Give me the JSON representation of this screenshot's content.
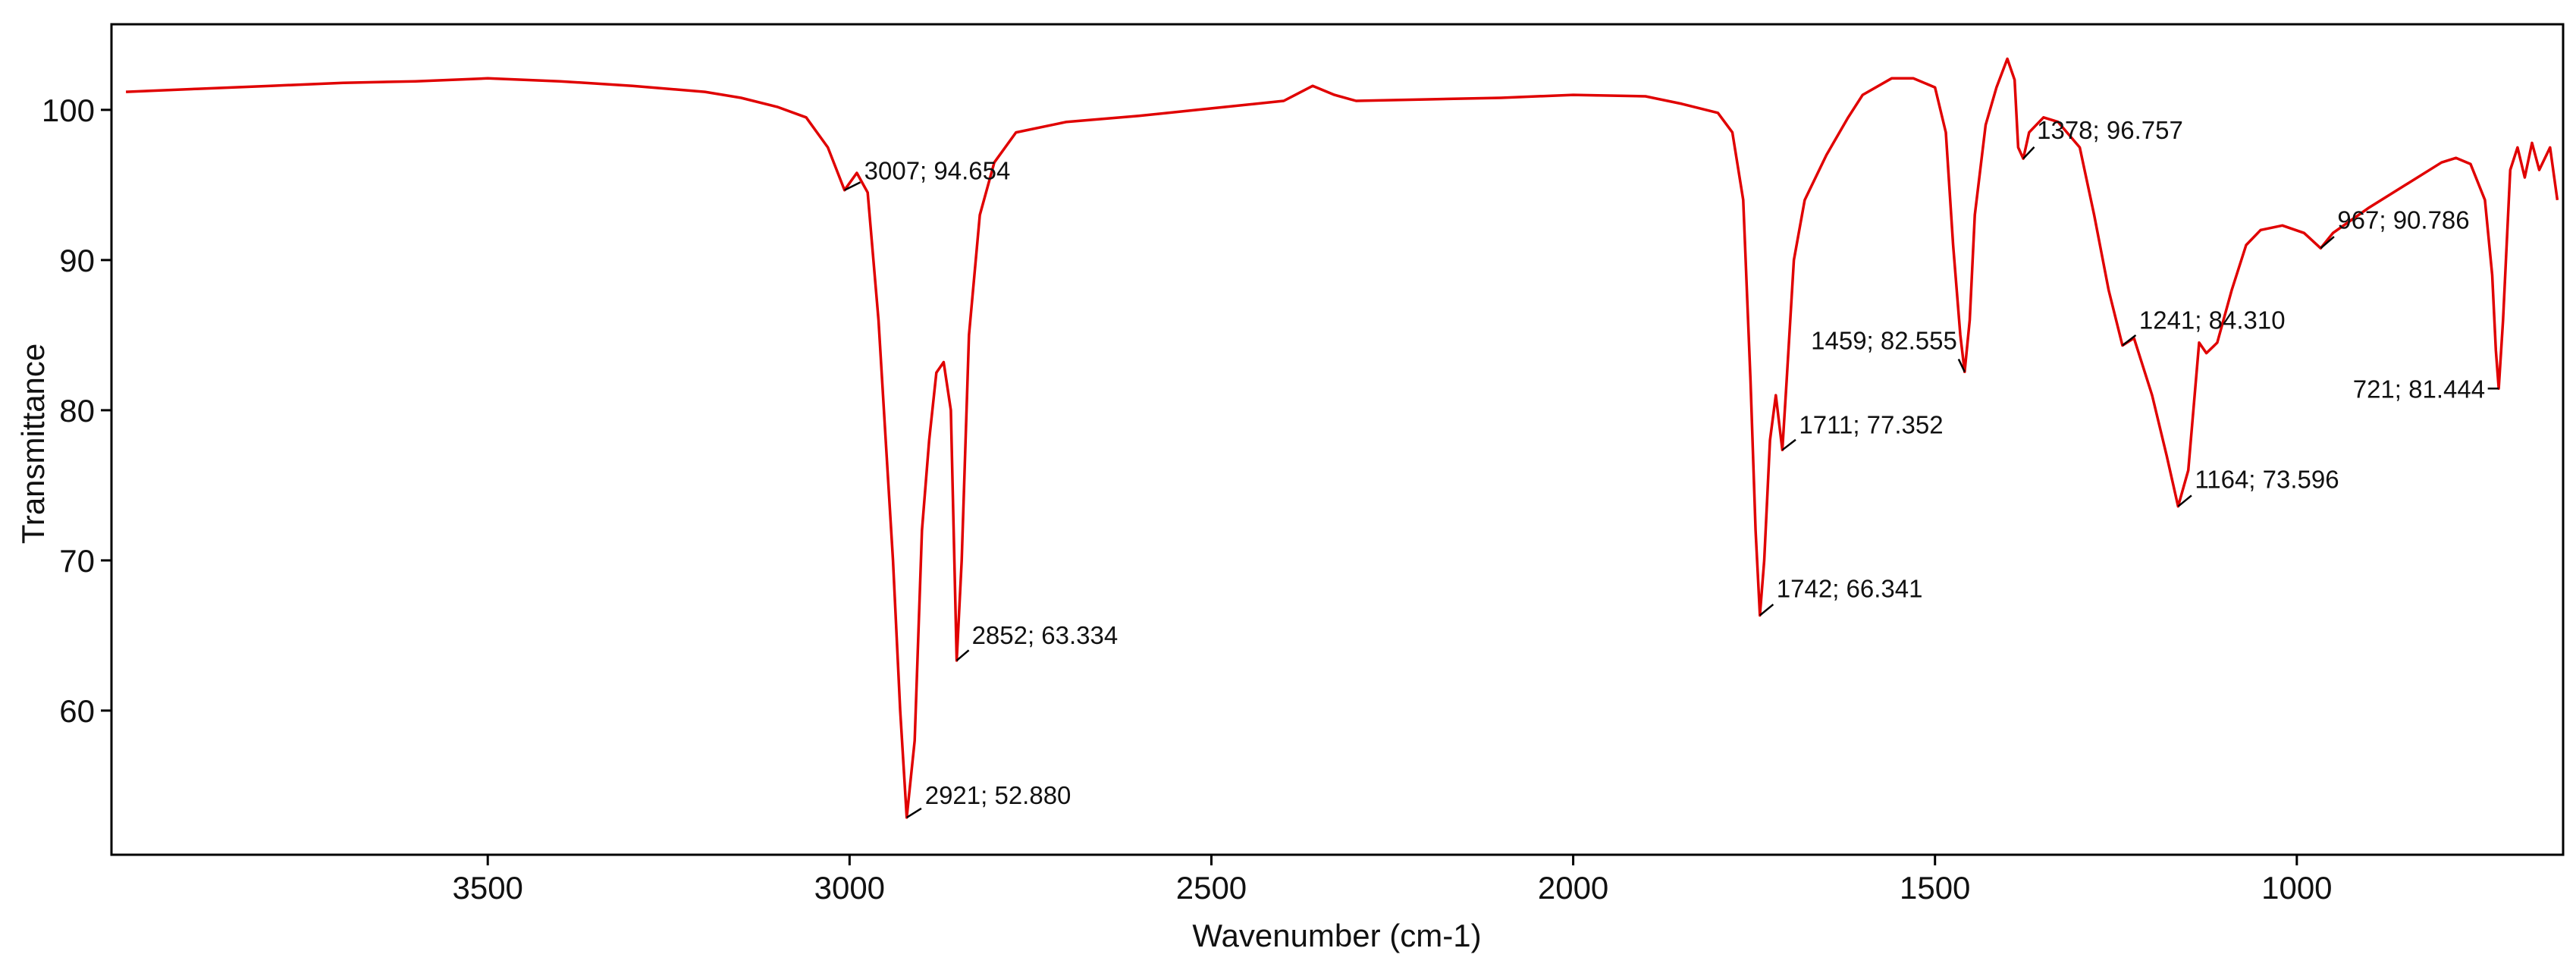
{
  "chart_data": {
    "type": "line",
    "xlabel": "Wavenumber (cm-1)",
    "ylabel": "Transmittance",
    "color": "#e00000",
    "xlim": [
      4020,
      632
    ],
    "ylim": [
      50.4,
      105.7
    ],
    "xticks": [
      3500,
      3000,
      2500,
      2000,
      1500,
      1000
    ],
    "yticks": [
      60,
      70,
      80,
      90,
      100
    ],
    "x": [
      4000,
      3900,
      3800,
      3700,
      3600,
      3500,
      3400,
      3300,
      3200,
      3150,
      3100,
      3060,
      3030,
      3007,
      2990,
      2975,
      2960,
      2950,
      2940,
      2930,
      2921,
      2910,
      2900,
      2890,
      2880,
      2870,
      2860,
      2852,
      2845,
      2835,
      2820,
      2800,
      2770,
      2700,
      2600,
      2500,
      2400,
      2360,
      2330,
      2300,
      2200,
      2100,
      2000,
      1900,
      1850,
      1800,
      1780,
      1765,
      1755,
      1748,
      1742,
      1736,
      1728,
      1720,
      1715,
      1711,
      1705,
      1695,
      1680,
      1650,
      1620,
      1600,
      1560,
      1530,
      1500,
      1485,
      1475,
      1465,
      1459,
      1452,
      1445,
      1430,
      1415,
      1400,
      1390,
      1385,
      1378,
      1370,
      1350,
      1330,
      1300,
      1280,
      1260,
      1241,
      1225,
      1200,
      1180,
      1164,
      1150,
      1135,
      1125,
      1110,
      1090,
      1070,
      1050,
      1020,
      990,
      967,
      950,
      900,
      850,
      800,
      780,
      760,
      740,
      730,
      725,
      721,
      715,
      705,
      695,
      685,
      675,
      665,
      650,
      640
    ],
    "values": [
      101.2,
      101.4,
      101.6,
      101.8,
      101.9,
      102.1,
      101.9,
      101.6,
      101.2,
      100.8,
      100.2,
      99.5,
      97.5,
      94.654,
      95.8,
      94.5,
      86,
      78,
      70,
      60,
      52.88,
      58,
      72,
      78,
      82.5,
      83.2,
      80,
      63.334,
      70,
      85,
      93,
      96.5,
      98.5,
      99.2,
      99.6,
      100.1,
      100.6,
      101.6,
      101.0,
      100.6,
      100.7,
      100.8,
      101.0,
      100.9,
      100.4,
      99.8,
      98.5,
      94,
      82,
      72,
      66.341,
      70,
      78,
      81,
      79,
      77.352,
      82,
      90,
      94,
      97,
      99.5,
      101,
      102.1,
      102.1,
      101.5,
      98.5,
      91,
      85,
      82.555,
      86,
      93,
      99,
      101.5,
      103.4,
      102,
      97.5,
      96.757,
      98.5,
      99.5,
      99.2,
      97.5,
      93,
      88,
      84.31,
      84.8,
      81,
      77,
      73.596,
      76,
      84.5,
      83.8,
      84.5,
      88,
      91,
      92,
      92.3,
      91.8,
      90.786,
      91.8,
      93.5,
      95,
      96.5,
      96.8,
      96.4,
      94,
      89,
      84,
      81.444,
      86,
      96,
      97.5,
      95.5,
      97.8,
      96,
      97.5,
      94
    ],
    "annotations": [
      {
        "x": 3007,
        "y": 94.654,
        "label": "3007; 94.654"
      },
      {
        "x": 2921,
        "y": 52.88,
        "label": "2921; 52.880"
      },
      {
        "x": 2852,
        "y": 63.334,
        "label": "2852; 63.334"
      },
      {
        "x": 1742,
        "y": 66.341,
        "label": "1742; 66.341"
      },
      {
        "x": 1711,
        "y": 77.352,
        "label": "1711; 77.352"
      },
      {
        "x": 1459,
        "y": 82.555,
        "label": "1459; 82.555"
      },
      {
        "x": 1378,
        "y": 96.757,
        "label": "1378; 96.757"
      },
      {
        "x": 1241,
        "y": 84.31,
        "label": "1241; 84.310"
      },
      {
        "x": 1164,
        "y": 73.596,
        "label": "1164; 73.596"
      },
      {
        "x": 967,
        "y": 90.786,
        "label": "967; 90.786"
      },
      {
        "x": 721,
        "y": 81.444,
        "label": "721; 81.444"
      }
    ]
  }
}
